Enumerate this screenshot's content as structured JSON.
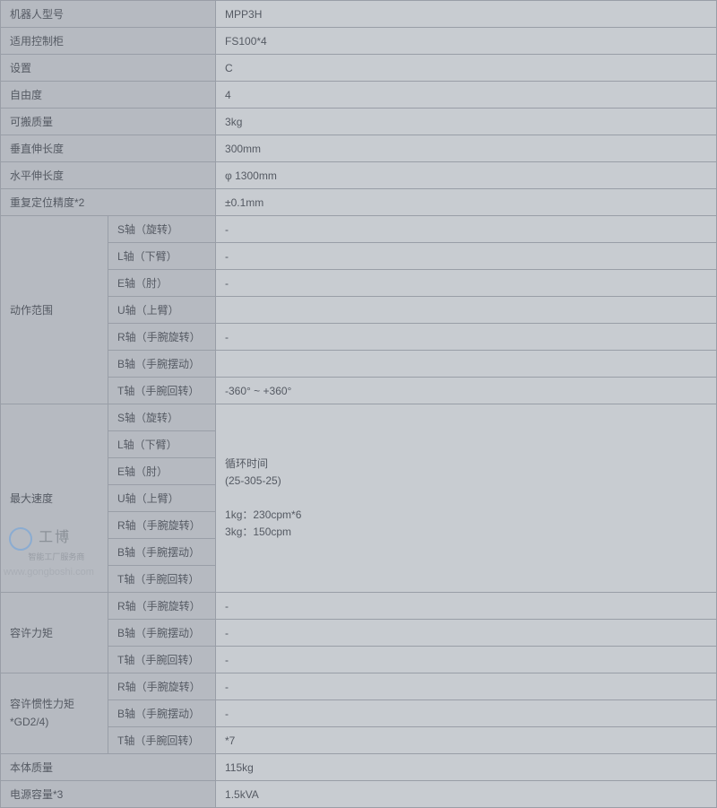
{
  "colors": {
    "bg": "#898e97",
    "cell_label_bg": "#b6bac1",
    "cell_value_bg": "#c8ccd1",
    "border": "#999ea7",
    "text": "#555a63"
  },
  "watermark": {
    "brand": "工博",
    "tagline": "智能工厂服务商",
    "url": "www.gongboshi.com"
  },
  "simple_rows": [
    {
      "label": "机器人型号",
      "value": "MPP3H"
    },
    {
      "label": "适用控制柜",
      "value": "FS100*4"
    },
    {
      "label": "设置",
      "value": "C"
    },
    {
      "label": "自由度",
      "value": "4"
    },
    {
      "label": "可搬质量",
      "value": "3kg"
    },
    {
      "label": "垂直伸长度",
      "value": "300mm"
    },
    {
      "label": "水平伸长度",
      "value": "φ 1300mm"
    },
    {
      "label": "重复定位精度*2",
      "value": "±0.1mm"
    }
  ],
  "axes": [
    "S轴（旋转）",
    "L轴（下臂）",
    "E轴（肘）",
    "U轴（上臂）",
    "R轴（手腕旋转）",
    "B轴（手腕摆动）",
    "T轴（手腕回转）"
  ],
  "axes3": [
    "R轴（手腕旋转）",
    "B轴（手腕摆动）",
    "T轴（手腕回转）"
  ],
  "motion_range": {
    "label": "动作范围",
    "values": [
      "-",
      "-",
      "-",
      "",
      "-",
      "",
      "-360° ~ +360°"
    ]
  },
  "max_speed": {
    "label": "最大速度",
    "merged_value": "循环时间\n(25-305-25)\n\n1kg：230cpm*6\n3kg：150cpm"
  },
  "allow_torque": {
    "label": "容许力矩",
    "values": [
      "-",
      "-",
      "-"
    ]
  },
  "allow_inertia": {
    "label": "容许惯性力矩\n*GD2/4)",
    "values": [
      "-",
      "-",
      "*7"
    ]
  },
  "tail_rows": [
    {
      "label": "本体质量",
      "value": "115kg"
    },
    {
      "label": "电源容量*3",
      "value": "1.5kVA"
    }
  ]
}
